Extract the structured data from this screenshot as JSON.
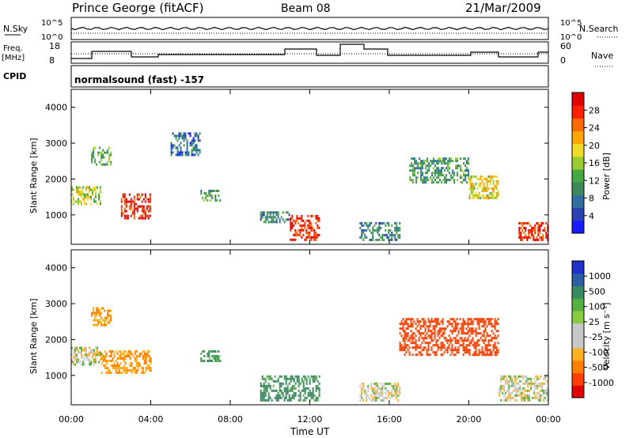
{
  "header": {
    "radar": "Prince George (fitACF)",
    "beam": "Beam 08",
    "date": "21/Mar/2009"
  },
  "strip_labels": {
    "nsky": "N.Sky",
    "nsky_ticks": [
      "10^5",
      "10^0"
    ],
    "nsearch": "N.Search",
    "nsearch_ticks": [
      "10^5",
      "10^0"
    ],
    "freq": "Freq.",
    "freq_unit": "[MHz]",
    "freq_ticks": [
      "18",
      "8"
    ],
    "nave": "Nave",
    "nave_ticks": [
      "60",
      "0"
    ],
    "cpid": "CPID",
    "cpid_value": "normalsound (fast) -157"
  },
  "panels": {
    "ylabel": "Slant Range [km]",
    "xlabel": "Time UT",
    "y_ticks": [
      "1000",
      "2000",
      "3000",
      "4000"
    ],
    "x_ticks": [
      "00:00",
      "04:00",
      "08:00",
      "12:00",
      "16:00",
      "20:00",
      "00:00"
    ]
  },
  "power_bar": {
    "label": "Power [dB]",
    "ticks": [
      "4",
      "8",
      "12",
      "16",
      "20",
      "24",
      "28"
    ],
    "colors": [
      "#1a1aff",
      "#2a3fb0",
      "#2f6fa0",
      "#3c8a5a",
      "#45a845",
      "#9acd32",
      "#f0dc28",
      "#ffa500",
      "#ff6a00",
      "#ff2000",
      "#e00000"
    ]
  },
  "velocity_bar": {
    "label": "Velocity [m s⁻¹]",
    "ticks": [
      "1000",
      "500",
      "100",
      "25",
      "-25",
      "-100",
      "-500",
      "-1000"
    ],
    "colors": [
      "#2030c8",
      "#2a5fa8",
      "#3a8a60",
      "#55b040",
      "#88cc44",
      "#c8c8c8",
      "#c8c8c8",
      "#ffb020",
      "#ff8000",
      "#ff4000",
      "#e00000"
    ]
  },
  "chart_data": {
    "type": "heatmap",
    "x_range_hours": [
      0,
      24
    ],
    "y_range_km": [
      180,
      4500
    ],
    "power_regions": [
      {
        "t": [
          0.0,
          1.5
        ],
        "r": [
          1300,
          1800
        ],
        "p": 16
      },
      {
        "t": [
          1.0,
          2.0
        ],
        "r": [
          2400,
          2900
        ],
        "p": 12
      },
      {
        "t": [
          2.5,
          4.0
        ],
        "r": [
          900,
          1600
        ],
        "p": 28
      },
      {
        "t": [
          5.0,
          6.5
        ],
        "r": [
          2700,
          3300
        ],
        "p": 6
      },
      {
        "t": [
          6.5,
          7.5
        ],
        "r": [
          1400,
          1700
        ],
        "p": 10
      },
      {
        "t": [
          9.5,
          11.0
        ],
        "r": [
          800,
          1100
        ],
        "p": 8
      },
      {
        "t": [
          11.0,
          12.5
        ],
        "r": [
          300,
          1000
        ],
        "p": 28
      },
      {
        "t": [
          14.5,
          16.5
        ],
        "r": [
          300,
          800
        ],
        "p": 8
      },
      {
        "t": [
          17.0,
          20.0
        ],
        "r": [
          1900,
          2600
        ],
        "p": 10
      },
      {
        "t": [
          20.0,
          21.5
        ],
        "r": [
          1500,
          2100
        ],
        "p": 18
      },
      {
        "t": [
          22.5,
          24.0
        ],
        "r": [
          300,
          800
        ],
        "p": 28
      }
    ],
    "velocity_regions": [
      {
        "t": [
          0.0,
          1.5
        ],
        "r": [
          1300,
          1800
        ],
        "v": 0
      },
      {
        "t": [
          1.0,
          2.0
        ],
        "r": [
          2400,
          2900
        ],
        "v": -100
      },
      {
        "t": [
          1.5,
          4.0
        ],
        "r": [
          1100,
          1700
        ],
        "v": -100
      },
      {
        "t": [
          6.5,
          7.5
        ],
        "r": [
          1400,
          1700
        ],
        "v": 50
      },
      {
        "t": [
          9.5,
          12.5
        ],
        "r": [
          300,
          1000
        ],
        "v": 100
      },
      {
        "t": [
          14.5,
          16.5
        ],
        "r": [
          300,
          800
        ],
        "v": 0
      },
      {
        "t": [
          16.5,
          21.5
        ],
        "r": [
          1600,
          2600
        ],
        "v": -500
      },
      {
        "t": [
          21.5,
          24.0
        ],
        "r": [
          300,
          1000
        ],
        "v": 0
      }
    ]
  }
}
